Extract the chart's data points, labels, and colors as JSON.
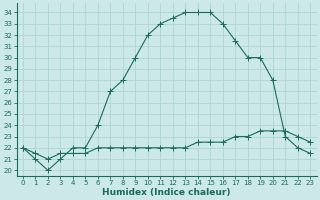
{
  "xlabel": "Humidex (Indice chaleur)",
  "x": [
    0,
    1,
    2,
    3,
    4,
    5,
    6,
    7,
    8,
    9,
    10,
    11,
    12,
    13,
    14,
    15,
    16,
    17,
    18,
    19,
    20,
    21,
    22,
    23
  ],
  "curve1": [
    22,
    21,
    20,
    21,
    22,
    22,
    24,
    27,
    28,
    30,
    32,
    33,
    33.5,
    34,
    34,
    34,
    33,
    31.5,
    30,
    30,
    28,
    23,
    22,
    21.5
  ],
  "curve2": [
    22,
    21.5,
    21,
    21.5,
    21.5,
    21.5,
    22,
    22,
    22,
    22,
    22,
    22,
    22,
    22,
    22.5,
    22.5,
    22.5,
    23,
    23,
    23.5,
    23.5,
    23.5,
    23,
    22.5
  ],
  "line_color": "#1a6b5e",
  "bg_color": "#cce8e8",
  "grid_color": "#aed4d4",
  "ylim": [
    19.5,
    34.8
  ],
  "xlim": [
    -0.5,
    23.5
  ],
  "yticks": [
    20,
    21,
    22,
    23,
    24,
    25,
    26,
    27,
    28,
    29,
    30,
    31,
    32,
    33,
    34
  ],
  "xticks": [
    0,
    1,
    2,
    3,
    4,
    5,
    6,
    7,
    8,
    9,
    10,
    11,
    12,
    13,
    14,
    15,
    16,
    17,
    18,
    19,
    20,
    21,
    22,
    23
  ],
  "tick_fontsize": 5.0,
  "xlabel_fontsize": 6.5,
  "linewidth": 0.8,
  "markersize": 2.5
}
